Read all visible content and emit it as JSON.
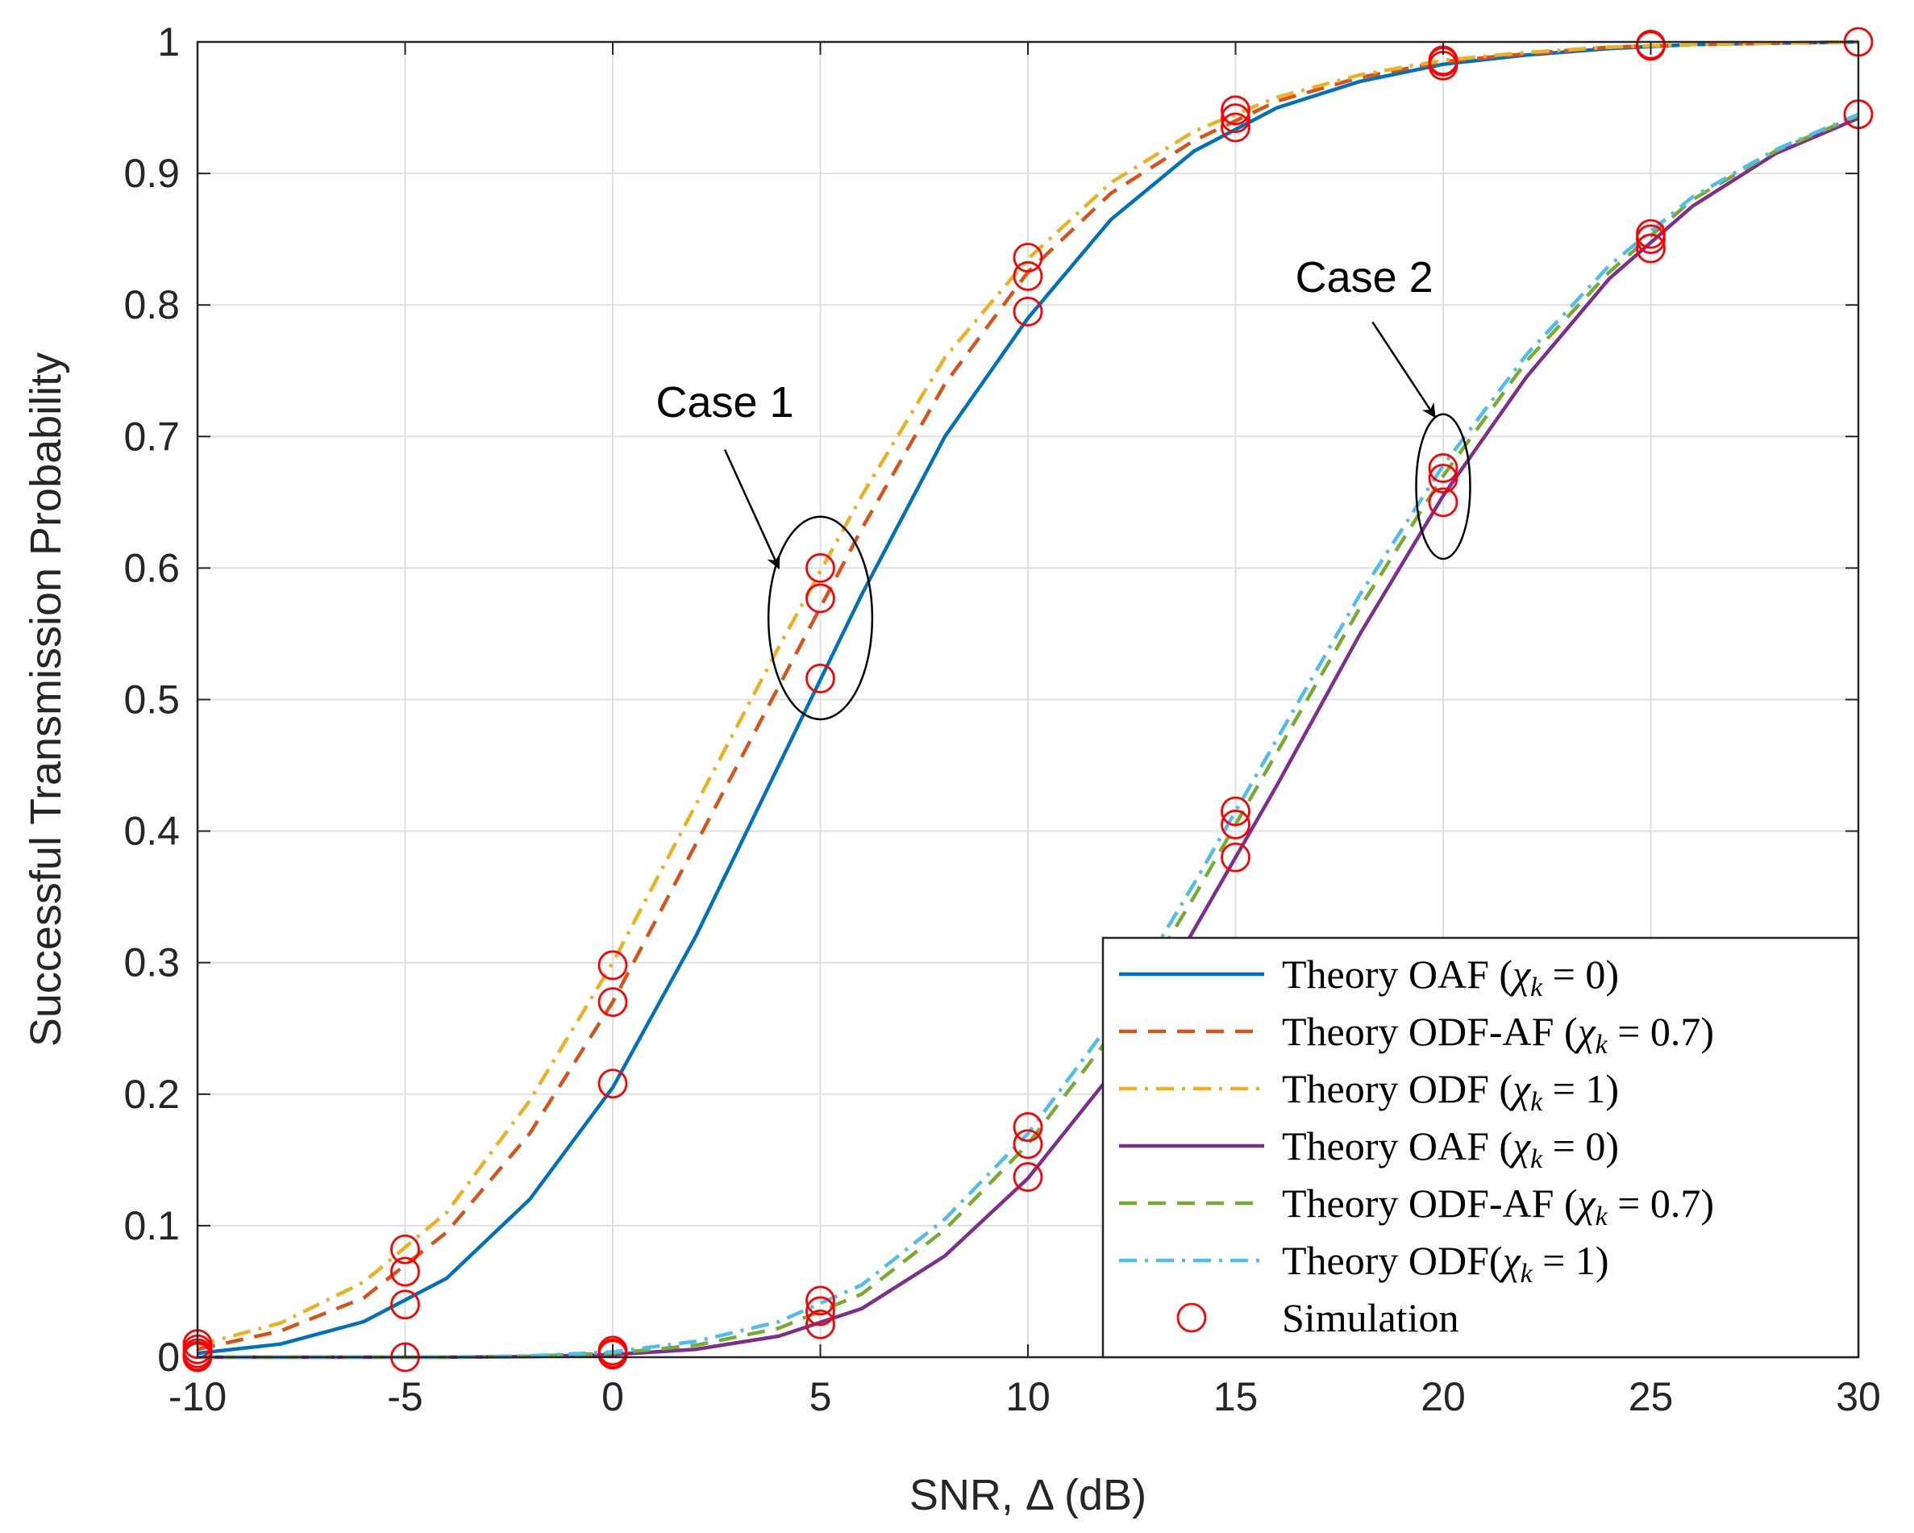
{
  "chart_data": {
    "type": "line",
    "xlabel": "SNR, Δ (dB)",
    "ylabel": "Successful Transmission Probability",
    "xlim": [
      -10,
      30
    ],
    "ylim": [
      0,
      1
    ],
    "grid": true,
    "xticks": [
      -10,
      -5,
      0,
      5,
      10,
      15,
      20,
      25,
      30
    ],
    "yticks": [
      0,
      0.1,
      0.2,
      0.3,
      0.4,
      0.5,
      0.6,
      0.7,
      0.8,
      0.9,
      1
    ],
    "x": [
      -10,
      -8,
      -6,
      -4,
      -2,
      0,
      2,
      4,
      6,
      8,
      10,
      12,
      14,
      16,
      18,
      20,
      22,
      24,
      26,
      28,
      30
    ],
    "series": [
      {
        "name": "Theory OAF (χk = 0)",
        "legend_main": "Theory OAF (",
        "legend_sub": "k",
        "legend_rest": " = 0)",
        "color": "#0072BD",
        "dash": "solid",
        "values": [
          0.003,
          0.01,
          0.027,
          0.06,
          0.12,
          0.205,
          0.32,
          0.45,
          0.58,
          0.7,
          0.79,
          0.865,
          0.917,
          0.95,
          0.97,
          0.983,
          0.99,
          0.995,
          0.998,
          0.999,
          1.0
        ]
      },
      {
        "name": "Theory ODF-AF (χk = 0.7)",
        "legend_main": "Theory ODF-AF (",
        "legend_sub": "k",
        "legend_rest": " = 0.7)",
        "color": "#D95319",
        "dash": "dashed",
        "values": [
          0.006,
          0.02,
          0.045,
          0.095,
          0.17,
          0.27,
          0.39,
          0.51,
          0.63,
          0.74,
          0.825,
          0.885,
          0.925,
          0.955,
          0.973,
          0.985,
          0.991,
          0.996,
          0.998,
          0.999,
          1.0
        ]
      },
      {
        "name": "Theory ODF (χk = 1)",
        "legend_main": "Theory ODF (",
        "legend_sub": "k",
        "legend_rest": " = 1)",
        "color": "#EDB120",
        "dash": "dashdot",
        "values": [
          0.009,
          0.026,
          0.057,
          0.11,
          0.195,
          0.3,
          0.42,
          0.54,
          0.655,
          0.76,
          0.835,
          0.893,
          0.932,
          0.958,
          0.975,
          0.986,
          0.992,
          0.996,
          0.998,
          0.999,
          1.0
        ]
      },
      {
        "name": "Theory OAF (χk = 0)",
        "legend_main": "Theory OAF (",
        "legend_sub": "k",
        "legend_rest": " = 0)",
        "color": "#7E2F8E",
        "dash": "solid",
        "values": [
          0,
          0,
          0,
          0,
          0.0005,
          0.002,
          0.006,
          0.016,
          0.037,
          0.077,
          0.136,
          0.215,
          0.325,
          0.435,
          0.55,
          0.655,
          0.745,
          0.82,
          0.875,
          0.915,
          0.942
        ]
      },
      {
        "name": "Theory ODF-AF (χk = 0.7)",
        "legend_main": "Theory ODF-AF (",
        "legend_sub": "k",
        "legend_rest": " = 0.7)",
        "color": "#77AC30",
        "dash": "dashed",
        "values": [
          0,
          0,
          0,
          0,
          0.0008,
          0.003,
          0.009,
          0.022,
          0.048,
          0.097,
          0.162,
          0.245,
          0.35,
          0.46,
          0.57,
          0.67,
          0.757,
          0.825,
          0.88,
          0.917,
          0.944
        ]
      },
      {
        "name": "Theory ODF(χk = 1)",
        "legend_main": "Theory ODF(",
        "legend_sub": "k",
        "legend_rest": " = 1)",
        "color": "#4DBEEE",
        "dash": "dashdot",
        "values": [
          0,
          0,
          0,
          0,
          0.001,
          0.004,
          0.012,
          0.027,
          0.055,
          0.105,
          0.17,
          0.255,
          0.36,
          0.47,
          0.58,
          0.678,
          0.762,
          0.83,
          0.882,
          0.918,
          0.945
        ]
      }
    ],
    "simulation": {
      "name": "Simulation",
      "color": "#FF0000",
      "points": [
        [
          -10,
          0.003
        ],
        [
          -10,
          0.006
        ],
        [
          -10,
          0.01
        ],
        [
          -10,
          0
        ],
        [
          -10,
          0.001
        ],
        [
          -5,
          0.04
        ],
        [
          -5,
          0.065
        ],
        [
          -5,
          0.082
        ],
        [
          -5,
          0
        ],
        [
          0,
          0.208
        ],
        [
          0,
          0.27
        ],
        [
          0,
          0.298
        ],
        [
          0,
          0.002
        ],
        [
          0,
          0.003
        ],
        [
          0,
          0.005
        ],
        [
          5,
          0.516
        ],
        [
          5,
          0.577
        ],
        [
          5,
          0.6
        ],
        [
          5,
          0.025
        ],
        [
          5,
          0.035
        ],
        [
          5,
          0.043
        ],
        [
          10,
          0.795
        ],
        [
          10,
          0.822
        ],
        [
          10,
          0.836
        ],
        [
          10,
          0.137
        ],
        [
          10,
          0.162
        ],
        [
          10,
          0.175
        ],
        [
          15,
          0.935
        ],
        [
          15,
          0.942
        ],
        [
          15,
          0.948
        ],
        [
          15,
          0.38
        ],
        [
          15,
          0.405
        ],
        [
          15,
          0.415
        ],
        [
          20,
          0.982
        ],
        [
          20,
          0.985
        ],
        [
          20,
          0.986
        ],
        [
          20,
          0.65
        ],
        [
          20,
          0.668
        ],
        [
          20,
          0.676
        ],
        [
          25,
          0.997
        ],
        [
          25,
          0.998
        ],
        [
          25,
          0.843
        ],
        [
          25,
          0.85
        ],
        [
          25,
          0.854
        ],
        [
          30,
          1.0
        ],
        [
          30,
          0.945
        ]
      ]
    },
    "annotations": [
      {
        "text": "Case 1",
        "text_x": 2.7,
        "text_y": 0.715,
        "arrow_from": [
          2.7,
          0.69
        ],
        "arrow_to": [
          4.0,
          0.6
        ],
        "ellipse_center": [
          5.0,
          0.562
        ],
        "ellipse_rx": 1.25,
        "ellipse_ry": 0.077
      },
      {
        "text": "Case 2",
        "text_x": 18.1,
        "text_y": 0.81,
        "arrow_from": [
          18.3,
          0.787
        ],
        "arrow_to": [
          19.8,
          0.715
        ],
        "ellipse_center": [
          20.0,
          0.662
        ],
        "ellipse_rx": 0.65,
        "ellipse_ry": 0.055
      }
    ],
    "legend_position": "bottom-right"
  }
}
